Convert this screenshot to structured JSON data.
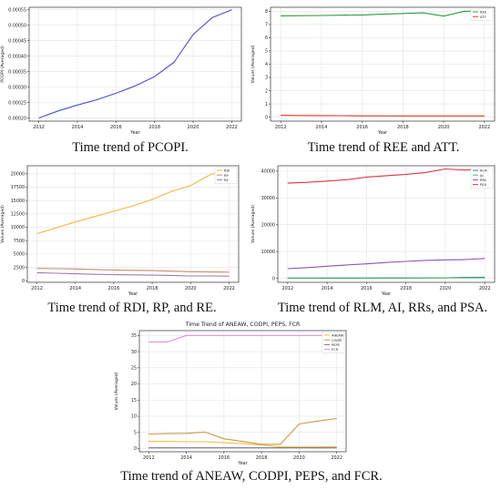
{
  "figure": {
    "captions": [
      "Time trend of PCOPI.",
      "Time trend of REE and ATT.",
      "Time trend of RDI, RP, and RE.",
      "Time trend of RLM, AI, RRs, and PSA.",
      "Time trend of ANEAW, CODPI, PEPS, and FCR."
    ]
  },
  "chart_data": [
    {
      "type": "line",
      "title": "",
      "xlabel": "Year",
      "ylabel": "PCOPI (Averaged)",
      "x": [
        2012,
        2013,
        2014,
        2015,
        2016,
        2017,
        2018,
        2019,
        2020,
        2021,
        2022
      ],
      "xticks": [
        2012,
        2014,
        2016,
        2018,
        2020,
        2022
      ],
      "yticks": [
        0.0002,
        0.00025,
        0.0003,
        0.00035,
        0.0004,
        0.00045,
        0.0005,
        0.00055
      ],
      "ytick_labels": [
        "0.00020",
        "0.00025",
        "0.00030",
        "0.00035",
        "0.00040",
        "0.00045",
        "0.00050",
        "0.00055"
      ],
      "xlim": [
        2011.5,
        2022.5
      ],
      "ylim": [
        0.00019,
        0.000558
      ],
      "grid": true,
      "legend": "none",
      "series": [
        {
          "color": "#4b4bd6",
          "values": [
            0.0002,
            0.000223,
            0.000242,
            0.000259,
            0.00028,
            0.000304,
            0.000334,
            0.00038,
            0.00047,
            0.000525,
            0.00055
          ]
        }
      ]
    },
    {
      "type": "line",
      "title": "",
      "xlabel": "Year",
      "ylabel": "Values (Averaged)",
      "x": [
        2012,
        2013,
        2014,
        2015,
        2016,
        2017,
        2018,
        2019,
        2020,
        2021,
        2022
      ],
      "xticks": [
        2012,
        2014,
        2016,
        2018,
        2020,
        2022
      ],
      "yticks": [
        0,
        1,
        2,
        3,
        4,
        5,
        6,
        7,
        8
      ],
      "ytick_labels": [
        "0",
        "1",
        "2",
        "3",
        "4",
        "5",
        "6",
        "7",
        "8"
      ],
      "xlim": [
        2011.5,
        2022.5
      ],
      "ylim": [
        -0.3,
        8.3
      ],
      "grid": true,
      "legend": "top-right",
      "series": [
        {
          "name": "REE",
          "color": "#2e9b3a",
          "values": [
            7.65,
            7.67,
            7.68,
            7.7,
            7.72,
            7.78,
            7.83,
            7.88,
            7.63,
            8.0,
            8.02
          ]
        },
        {
          "name": "ATT",
          "color": "#e23a2a",
          "values": [
            0.14,
            0.13,
            0.12,
            0.11,
            0.1,
            0.1,
            0.09,
            0.09,
            0.09,
            0.09,
            0.09
          ]
        }
      ]
    },
    {
      "type": "line",
      "title": "",
      "xlabel": "Year",
      "ylabel": "Values (Averaged)",
      "x": [
        2012,
        2013,
        2014,
        2015,
        2016,
        2017,
        2018,
        2019,
        2020,
        2021,
        2022
      ],
      "xticks": [
        2012,
        2014,
        2016,
        2018,
        2020,
        2022
      ],
      "yticks": [
        0,
        2500,
        5000,
        7500,
        10000,
        12500,
        15000,
        17500,
        20000
      ],
      "ytick_labels": [
        "0",
        "2500",
        "5000",
        "7500",
        "10000",
        "12500",
        "15000",
        "17500",
        "20000"
      ],
      "xlim": [
        2011.5,
        2022.5
      ],
      "ylim": [
        -300,
        21500
      ],
      "grid": true,
      "legend": "top-right",
      "series": [
        {
          "name": "RDI",
          "color": "#f5b642",
          "values": [
            8800,
            9900,
            11000,
            12000,
            13000,
            14000,
            15200,
            16700,
            17800,
            19800,
            21000
          ]
        },
        {
          "name": "RP",
          "color": "#c98b6b",
          "values": [
            2300,
            2250,
            2200,
            2100,
            2000,
            1950,
            1900,
            1800,
            1700,
            1650,
            1600
          ]
        },
        {
          "name": "RE",
          "color": "#9a7fa3",
          "values": [
            1500,
            1400,
            1300,
            1200,
            1150,
            1100,
            1050,
            1000,
            900,
            900,
            850
          ]
        }
      ]
    },
    {
      "type": "line",
      "title": "",
      "xlabel": "Year",
      "ylabel": "Values (Averaged)",
      "x": [
        2012,
        2013,
        2014,
        2015,
        2016,
        2017,
        2018,
        2019,
        2020,
        2021,
        2022
      ],
      "xticks": [
        2012,
        2014,
        2016,
        2018,
        2020,
        2022
      ],
      "yticks": [
        0,
        10000,
        20000,
        30000,
        40000
      ],
      "ytick_labels": [
        "0",
        "10000",
        "20000",
        "30000",
        "40000"
      ],
      "xlim": [
        2011.5,
        2022.5
      ],
      "ylim": [
        -1500,
        42000
      ],
      "grid": true,
      "legend": "top-right",
      "series": [
        {
          "name": "RLM",
          "color": "#3c6fb0",
          "values": [
            50,
            60,
            70,
            80,
            90,
            100,
            110,
            120,
            150,
            380,
            420
          ]
        },
        {
          "name": "AI",
          "color": "#4bb86b",
          "values": [
            100,
            110,
            120,
            130,
            140,
            150,
            160,
            170,
            180,
            190,
            200
          ]
        },
        {
          "name": "RRs",
          "color": "#8e52b0",
          "values": [
            3600,
            4000,
            4500,
            5000,
            5400,
            5900,
            6300,
            6700,
            6900,
            7000,
            7400
          ]
        },
        {
          "name": "PSA",
          "color": "#e33340",
          "values": [
            35500,
            35800,
            36300,
            36800,
            37800,
            38300,
            38800,
            39500,
            40800,
            40400,
            41000
          ]
        }
      ]
    },
    {
      "type": "line",
      "title": "Time Trend of ANEAW, CODPI, PEPS, FCR",
      "xlabel": "Year",
      "ylabel": "Values (Averaged)",
      "x": [
        2012,
        2013,
        2014,
        2015,
        2016,
        2017,
        2018,
        2019,
        2020,
        2021,
        2022
      ],
      "xticks": [
        2012,
        2014,
        2016,
        2018,
        2020,
        2022
      ],
      "yticks": [
        0,
        5,
        10,
        15,
        20,
        25,
        30,
        35
      ],
      "ytick_labels": [
        "0",
        "5",
        "10",
        "15",
        "20",
        "25",
        "30",
        "35"
      ],
      "xlim": [
        2011.5,
        2022.5
      ],
      "ylim": [
        -1,
        36.5
      ],
      "grid": true,
      "legend": "top-right",
      "series": [
        {
          "name": "ANEAW",
          "color": "#f2be3c",
          "values": [
            2.2,
            2.2,
            2.1,
            2.1,
            1.8,
            1.5,
            1.1,
            0.5,
            0.5,
            0.5,
            0.6
          ]
        },
        {
          "name": "CODPI",
          "color": "#c99a45",
          "values": [
            4.5,
            4.6,
            4.7,
            5.1,
            3.0,
            2.2,
            1.3,
            1.3,
            7.6,
            8.5,
            9.3
          ]
        },
        {
          "name": "PEPS",
          "color": "#7d6e9e",
          "values": [
            0.2,
            0.2,
            0.2,
            0.2,
            0.2,
            0.2,
            0.2,
            0.2,
            0.2,
            0.2,
            0.2
          ]
        },
        {
          "name": "FCR",
          "color": "#d697d6",
          "values": [
            33.0,
            33.0,
            35.0,
            35.0,
            35.0,
            35.0,
            35.0,
            35.0,
            35.0,
            35.0,
            35.0
          ]
        }
      ]
    }
  ]
}
